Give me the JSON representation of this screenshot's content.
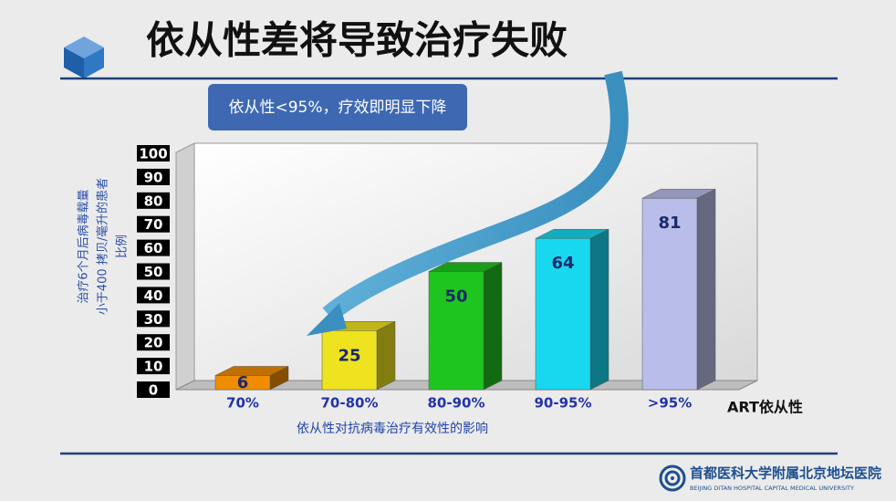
{
  "chart_data": {
    "type": "bar3d",
    "title": "依从性差将导致治疗失败",
    "callout": "依从性<95%，疗效即明显下降",
    "ylabel": [
      "治疗6个月后病毒载量",
      "小于400 拷贝/毫升的患者",
      "比例"
    ],
    "xlabel": "ART依从性",
    "caption": "依从性对抗病毒治疗有效性的影响",
    "categories": [
      "70%",
      "70-80%",
      "80-90%",
      "90-95%",
      ">95%"
    ],
    "values": [
      6,
      25,
      50,
      64,
      81
    ],
    "colors": [
      "#f08c00",
      "#efe21e",
      "#1ec51e",
      "#18d8f0",
      "#b9bde9"
    ],
    "ylim": [
      0,
      100
    ],
    "yticks": [
      0,
      10,
      20,
      30,
      40,
      50,
      60,
      70,
      80,
      90,
      100
    ]
  },
  "footer": {
    "hospital": "首都医科大学附属北京地坛医院",
    "hospital_en": "BEIJING DITAN HOSPITAL CAPITAL MEDICAL UNIVERSITY"
  }
}
